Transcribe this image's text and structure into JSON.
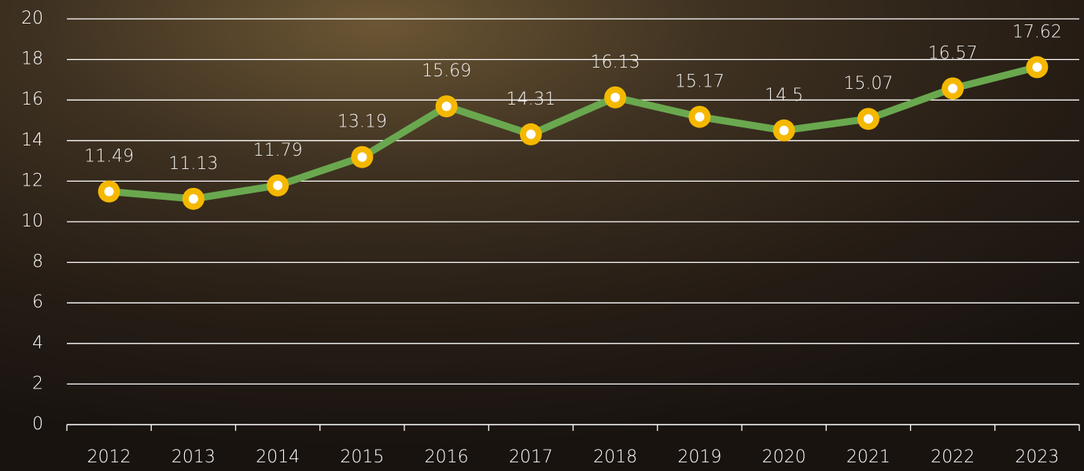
{
  "chart_data": {
    "type": "line",
    "categories": [
      "2012",
      "2013",
      "2014",
      "2015",
      "2016",
      "2017",
      "2018",
      "2019",
      "2020",
      "2021",
      "2022",
      "2023"
    ],
    "values": [
      11.49,
      11.13,
      11.79,
      13.19,
      15.69,
      14.31,
      16.13,
      15.17,
      14.5,
      15.07,
      16.57,
      17.62
    ],
    "color": "#6aa84f",
    "marker_color": "#f5b800",
    "ylim": [
      0,
      20
    ],
    "yticks": [
      0,
      2,
      4,
      6,
      8,
      10,
      12,
      14,
      16,
      18,
      20
    ],
    "grid": true
  }
}
